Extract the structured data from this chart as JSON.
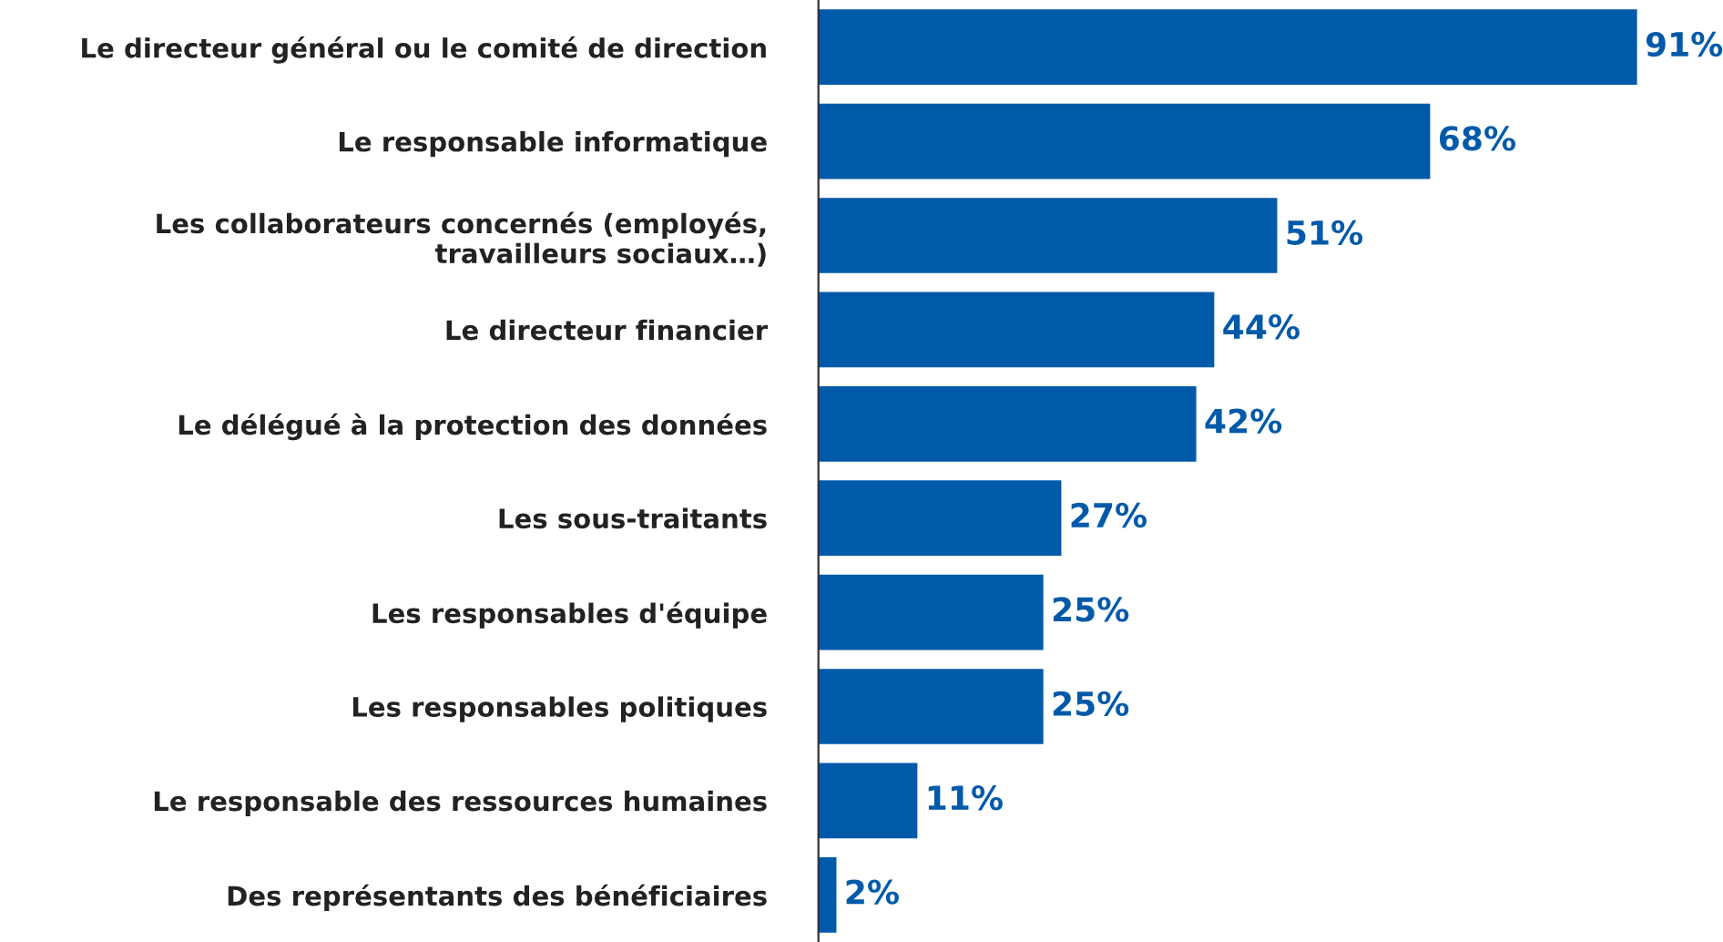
{
  "chart_data": {
    "type": "bar",
    "orientation": "horizontal",
    "categories": [
      "Le directeur général ou le comité de direction",
      "Le responsable informatique",
      "Les collaborateurs concernés (employés,\ntravailleurs sociaux…)",
      "Le directeur financier",
      "Le délégué à la protection des données",
      "Les sous-traitants",
      "Les responsables d'équipe",
      "Les responsables politiques",
      "Le responsable des ressources humaines",
      "Des représentants des bénéficiaires"
    ],
    "values": [
      91,
      68,
      51,
      44,
      42,
      27,
      25,
      25,
      11,
      2
    ],
    "value_labels": [
      "91%",
      "68%",
      "51%",
      "44%",
      "42%",
      "27%",
      "25%",
      "25%",
      "11%",
      "2%"
    ],
    "color": "#005aa9",
    "grid": false,
    "legend": false
  }
}
